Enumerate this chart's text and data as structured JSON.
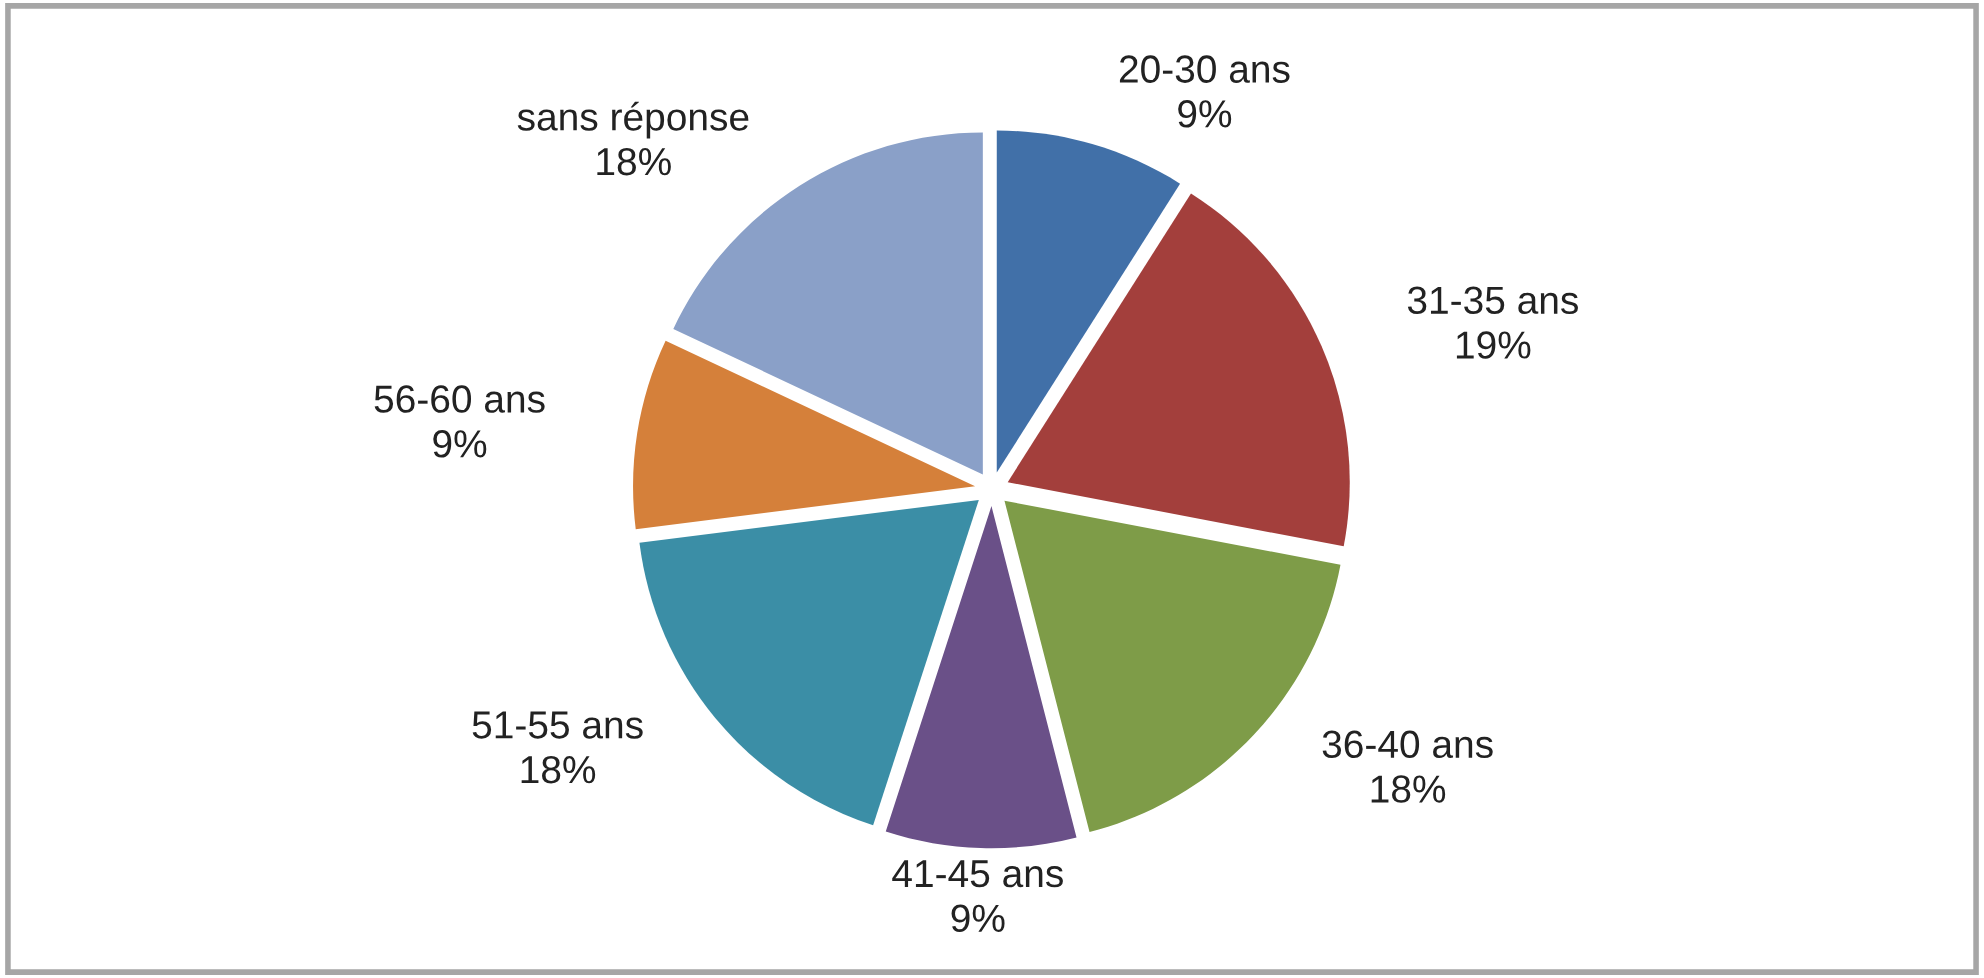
{
  "chart_data": {
    "type": "pie",
    "categories": [
      "20-30 ans",
      "31-35 ans",
      "36-40 ans",
      "41-45 ans",
      "51-55 ans",
      "56-60 ans",
      "sans réponse"
    ],
    "values": [
      9,
      19,
      18,
      9,
      18,
      9,
      18
    ],
    "value_labels": [
      "9%",
      "19%",
      "18%",
      "9%",
      "18%",
      "9%",
      "18%"
    ],
    "colors": [
      "#4170a8",
      "#a33f3c",
      "#7e9c48",
      "#6a5088",
      "#3b8ea6",
      "#d5803a",
      "#8aa0c8"
    ]
  }
}
